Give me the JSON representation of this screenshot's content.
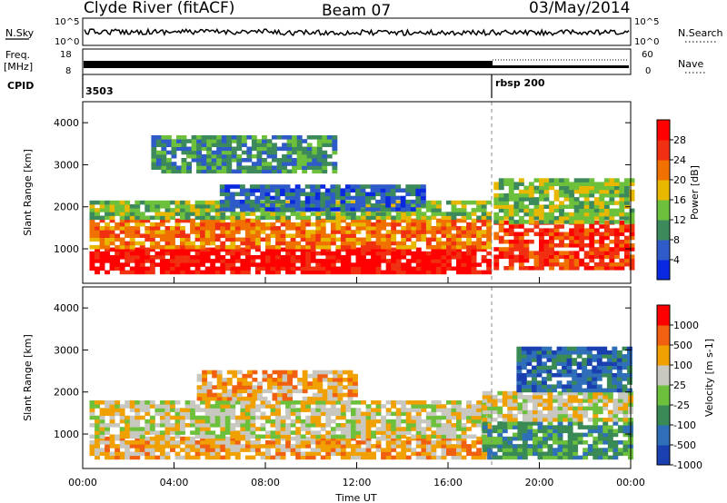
{
  "header": {
    "station": "Clyde River (fitACF)",
    "beam": "Beam 07",
    "date": "03/May/2014"
  },
  "nsky": {
    "label": "N.Sky",
    "ticks": [
      "10^5",
      "10^0"
    ],
    "right_label": "N.Search",
    "right_ticks": [
      "10^5",
      "10^0"
    ]
  },
  "freq": {
    "label_line1": "Freq.",
    "label_line2": "[MHz]",
    "ticks": [
      "18",
      "8"
    ],
    "right_label": "Nave",
    "right_ticks": [
      "60",
      "0"
    ]
  },
  "cpid": {
    "label": "CPID",
    "segments": [
      {
        "text": "3503",
        "start_hour": 0
      },
      {
        "text": "rbsp 200",
        "start_hour": 18
      }
    ]
  },
  "x_axis": {
    "label": "Time UT",
    "ticks": [
      "00:00",
      "04:00",
      "08:00",
      "12:00",
      "16:00",
      "20:00",
      "00:00"
    ],
    "range_hours": [
      0,
      24
    ]
  },
  "chart_data": [
    {
      "type": "heatmap",
      "name": "power",
      "ylabel": "Slant Range [km]",
      "ylim": [
        180,
        4500
      ],
      "y_ticks": [
        1000,
        2000,
        3000,
        4000
      ],
      "colorbar": {
        "label": "Power [dB]",
        "tick_labels": [
          "4",
          "8",
          "12",
          "16",
          "20",
          "24",
          "28"
        ],
        "colors": [
          "#0a28e0",
          "#2f5bc8",
          "#3c8a5c",
          "#6cc03c",
          "#e8b800",
          "#f07000",
          "#f03010",
          "#ff0000"
        ]
      },
      "regions": [
        {
          "t0": 0.3,
          "t1": 17.8,
          "r0": 400,
          "r1": 1000,
          "level": 7
        },
        {
          "t0": 0.3,
          "t1": 17.8,
          "r0": 1000,
          "r1": 1700,
          "level": 5
        },
        {
          "t0": 0.3,
          "t1": 17.8,
          "r0": 1700,
          "r1": 2100,
          "level": 3
        },
        {
          "t0": 6.0,
          "t1": 15.0,
          "r0": 1900,
          "r1": 2500,
          "level": 1
        },
        {
          "t0": 18.0,
          "t1": 24.0,
          "r0": 500,
          "r1": 1600,
          "level": 6
        },
        {
          "t0": 18.0,
          "t1": 24.0,
          "r0": 1600,
          "r1": 2600,
          "level": 3
        },
        {
          "t0": 3.0,
          "t1": 11.0,
          "r0": 2800,
          "r1": 3700,
          "level": 2
        }
      ]
    },
    {
      "type": "heatmap",
      "name": "velocity",
      "ylabel": "Slant Range [km]",
      "ylim": [
        180,
        4500
      ],
      "y_ticks": [
        1000,
        2000,
        3000,
        4000
      ],
      "colorbar": {
        "label": "Velocity [m s-1]",
        "tick_labels": [
          "1000",
          "500",
          "100",
          "25",
          "-25",
          "-100",
          "-500",
          "-1000"
        ],
        "colors": [
          "#1a3fb0",
          "#2e6fb8",
          "#3a8a56",
          "#6cc03c",
          "#c8c8c0",
          "#f0a000",
          "#f06010",
          "#ff0000"
        ]
      },
      "regions": [
        {
          "t0": 0.3,
          "t1": 17.8,
          "r0": 400,
          "r1": 900,
          "level": 5
        },
        {
          "t0": 0.3,
          "t1": 17.8,
          "r0": 900,
          "r1": 1800,
          "level": 4
        },
        {
          "t0": 5.0,
          "t1": 12.0,
          "r0": 1800,
          "r1": 2500,
          "level": 5
        },
        {
          "t0": 17.5,
          "t1": 24.0,
          "r0": 400,
          "r1": 1300,
          "level": 2
        },
        {
          "t0": 17.5,
          "t1": 24.0,
          "r0": 1300,
          "r1": 2000,
          "level": 4
        },
        {
          "t0": 19.0,
          "t1": 24.0,
          "r0": 2000,
          "r1": 3000,
          "level": 1
        }
      ]
    }
  ]
}
